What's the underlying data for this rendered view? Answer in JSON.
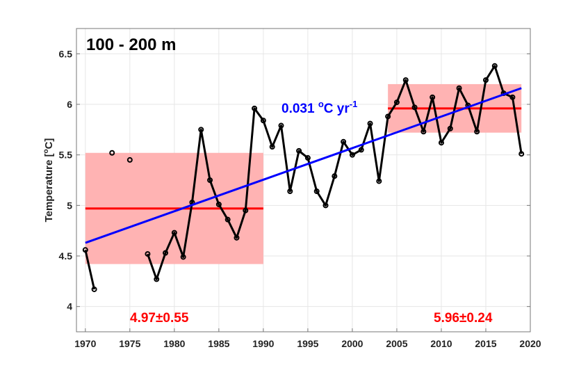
{
  "chart_data": {
    "type": "line",
    "title": "100 - 200 m",
    "xlabel": "",
    "ylabel": "Temperature [",
    "ylabel_unit_sup": "o",
    "ylabel_unit": "C]",
    "xlim": [
      1969,
      2020
    ],
    "ylim": [
      3.75,
      6.75
    ],
    "xticks": [
      1970,
      1975,
      1980,
      1985,
      1990,
      1995,
      2000,
      2005,
      2010,
      2015,
      2020
    ],
    "yticks": [
      4,
      4.5,
      5,
      5.5,
      6,
      6.5
    ],
    "ytick_labels": [
      "4",
      "4.5",
      "5",
      "5.5",
      "6",
      "6.5"
    ],
    "grid": true,
    "series": [
      {
        "color": "#000000",
        "x": [
          1970,
          1971,
          1972,
          1973,
          1974,
          1975,
          1976,
          1977,
          1978,
          1979,
          1980,
          1981,
          1982,
          1983,
          1984,
          1985,
          1986,
          1987,
          1988,
          1989,
          1990,
          1991,
          1992,
          1993,
          1994,
          1995,
          1996,
          1997,
          1998,
          1999,
          2000,
          2001,
          2002,
          2003,
          2004,
          2005,
          2006,
          2007,
          2008,
          2009,
          2010,
          2011,
          2012,
          2013,
          2014,
          2015,
          2016,
          2017,
          2018,
          2019
        ],
        "y": [
          4.56,
          4.17,
          null,
          5.52,
          null,
          5.45,
          null,
          4.52,
          4.27,
          4.53,
          4.73,
          4.49,
          5.03,
          5.75,
          5.25,
          5.01,
          4.86,
          4.68,
          4.95,
          5.96,
          5.84,
          5.58,
          5.79,
          5.14,
          5.54,
          5.47,
          5.14,
          5.0,
          5.29,
          5.63,
          5.5,
          5.55,
          5.81,
          5.24,
          5.88,
          6.02,
          6.24,
          5.97,
          5.73,
          6.07,
          5.62,
          5.76,
          6.16,
          5.99,
          5.73,
          6.24,
          6.38,
          6.11,
          6.07,
          5.51
        ]
      }
    ],
    "trend": {
      "color": "#0000FF",
      "x": [
        1970,
        2019
      ],
      "y": [
        4.63,
        6.16
      ],
      "label": "0.031 ",
      "label_sup": "o",
      "label_unit": "C yr",
      "label_unit_sup": "-1"
    },
    "periods": [
      {
        "x": [
          1970,
          1990
        ],
        "mean": 4.97,
        "std": 0.55,
        "label": "4.97±0.55"
      },
      {
        "x": [
          2004,
          2019
        ],
        "mean": 5.96,
        "std": 0.24,
        "label": "5.96±0.24"
      }
    ],
    "period_color": "#FF0000",
    "band_color": "#FFB3B3"
  }
}
